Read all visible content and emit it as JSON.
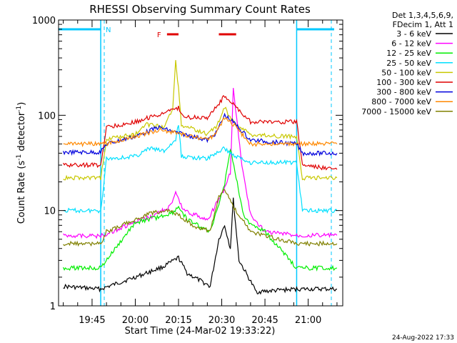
{
  "chart_data": {
    "type": "line",
    "title": "RHESSI Observing Summary Count Rates",
    "xlabel": "Start Time (24-Mar-02 19:33:22)",
    "ylabel": "Count Rate (s",
    "ylabel_sup": "-1",
    "ylabel_mid": " detector",
    "ylabel_end": ")",
    "y_scale": "log",
    "ylim": [
      1,
      1000
    ],
    "xlim": [
      "19:33:22",
      "21:12:00"
    ],
    "x_ticks": [
      "19:45",
      "20:00",
      "20:15",
      "20:30",
      "20:45",
      "21:00"
    ],
    "y_ticks": [
      "1",
      "10",
      "100",
      "1000"
    ],
    "legend_position": "right",
    "legend_header": [
      "Det 1,3,4,5,6,9,",
      "FDecim 1, Att 1"
    ],
    "flags": [
      {
        "label": "N",
        "color": "#00c8ff",
        "kind": "night"
      },
      {
        "label": "F",
        "color": "#e00000",
        "kind": "flare"
      }
    ],
    "night_start": "19:48",
    "night_end": "20:56",
    "flare_bars": [
      [
        "20:11",
        "20:15"
      ],
      [
        "20:29",
        "20:35"
      ]
    ],
    "series": [
      {
        "name": "3 - 6 keV",
        "color": "#000000",
        "points": [
          [
            "19:35",
            1.6
          ],
          [
            "19:48",
            1.5
          ],
          [
            "20:02",
            2.1
          ],
          [
            "20:10",
            2.6
          ],
          [
            "20:15",
            3.2
          ],
          [
            "20:18",
            2.2
          ],
          [
            "20:26",
            1.6
          ],
          [
            "20:29",
            5
          ],
          [
            "20:31",
            7
          ],
          [
            "20:33",
            4
          ],
          [
            "20:34",
            13
          ],
          [
            "20:36",
            3
          ],
          [
            "20:42",
            1.4
          ],
          [
            "20:56",
            1.5
          ],
          [
            "21:10",
            1.5
          ]
        ]
      },
      {
        "name": "6 - 12 keV",
        "color": "#ff00ff",
        "points": [
          [
            "19:35",
            5.5
          ],
          [
            "19:48",
            5.4
          ],
          [
            "20:00",
            7.5
          ],
          [
            "20:05",
            8.5
          ],
          [
            "20:12",
            11
          ],
          [
            "20:14",
            15
          ],
          [
            "20:17",
            10
          ],
          [
            "20:25",
            8
          ],
          [
            "20:29",
            13
          ],
          [
            "20:31",
            17
          ],
          [
            "20:33",
            25
          ],
          [
            "20:34",
            190
          ],
          [
            "20:37",
            30
          ],
          [
            "20:40",
            9
          ],
          [
            "20:45",
            6
          ],
          [
            "20:56",
            5.5
          ],
          [
            "21:10",
            5.5
          ]
        ]
      },
      {
        "name": "12 - 25 keV",
        "color": "#00ee00",
        "points": [
          [
            "19:35",
            2.5
          ],
          [
            "19:48",
            2.5
          ],
          [
            "20:00",
            7.5
          ],
          [
            "20:08",
            8.5
          ],
          [
            "20:13",
            9.5
          ],
          [
            "20:15",
            11
          ],
          [
            "20:18",
            8
          ],
          [
            "20:26",
            6
          ],
          [
            "20:29",
            12
          ],
          [
            "20:31",
            19
          ],
          [
            "20:33",
            45
          ],
          [
            "20:35",
            22
          ],
          [
            "20:38",
            8
          ],
          [
            "20:45",
            6
          ],
          [
            "20:56",
            2.5
          ],
          [
            "21:10",
            2.5
          ]
        ]
      },
      {
        "name": "25 - 50 keV",
        "color": "#00e0ff",
        "points": [
          [
            "19:35",
            10
          ],
          [
            "19:48",
            10
          ],
          [
            "19:50",
            35
          ],
          [
            "20:00",
            37
          ],
          [
            "20:05",
            45
          ],
          [
            "20:10",
            42
          ],
          [
            "20:14",
            55
          ],
          [
            "20:15",
            80
          ],
          [
            "20:16",
            37
          ],
          [
            "20:25",
            35
          ],
          [
            "20:28",
            40
          ],
          [
            "20:31",
            45
          ],
          [
            "20:34",
            38
          ],
          [
            "20:40",
            32
          ],
          [
            "20:56",
            32
          ],
          [
            "20:58",
            10
          ],
          [
            "21:10",
            10
          ]
        ]
      },
      {
        "name": "50 - 100 keV",
        "color": "#c8c800",
        "points": [
          [
            "19:35",
            22
          ],
          [
            "19:48",
            22
          ],
          [
            "19:50",
            57
          ],
          [
            "20:00",
            63
          ],
          [
            "20:04",
            80
          ],
          [
            "20:10",
            75
          ],
          [
            "20:13",
            120
          ],
          [
            "20:14",
            370
          ],
          [
            "20:15",
            190
          ],
          [
            "20:16",
            80
          ],
          [
            "20:25",
            63
          ],
          [
            "20:28",
            75
          ],
          [
            "20:31",
            120
          ],
          [
            "20:34",
            85
          ],
          [
            "20:40",
            62
          ],
          [
            "20:56",
            60
          ],
          [
            "20:58",
            22
          ],
          [
            "21:10",
            22
          ]
        ]
      },
      {
        "name": "100 - 300 keV",
        "color": "#e00000",
        "points": [
          [
            "19:35",
            30
          ],
          [
            "19:48",
            30
          ],
          [
            "19:50",
            75
          ],
          [
            "20:00",
            85
          ],
          [
            "20:07",
            100
          ],
          [
            "20:12",
            110
          ],
          [
            "20:15",
            120
          ],
          [
            "20:17",
            95
          ],
          [
            "20:25",
            95
          ],
          [
            "20:28",
            120
          ],
          [
            "20:31",
            160
          ],
          [
            "20:34",
            130
          ],
          [
            "20:40",
            85
          ],
          [
            "20:56",
            85
          ],
          [
            "20:58",
            30
          ],
          [
            "21:10",
            27
          ]
        ]
      },
      {
        "name": "300 - 800 keV",
        "color": "#0000dd",
        "points": [
          [
            "19:35",
            41
          ],
          [
            "19:48",
            41
          ],
          [
            "19:50",
            50
          ],
          [
            "20:00",
            60
          ],
          [
            "20:08",
            75
          ],
          [
            "20:15",
            65
          ],
          [
            "20:25",
            55
          ],
          [
            "20:28",
            65
          ],
          [
            "20:31",
            100
          ],
          [
            "20:34",
            85
          ],
          [
            "20:40",
            55
          ],
          [
            "20:56",
            50
          ],
          [
            "20:58",
            40
          ],
          [
            "21:10",
            40
          ]
        ]
      },
      {
        "name": "800 - 7000 keV",
        "color": "#ff8800",
        "points": [
          [
            "19:35",
            50
          ],
          [
            "19:48",
            50
          ],
          [
            "19:50",
            50
          ],
          [
            "20:00",
            60
          ],
          [
            "20:08",
            70
          ],
          [
            "20:15",
            65
          ],
          [
            "20:25",
            55
          ],
          [
            "20:28",
            65
          ],
          [
            "20:31",
            95
          ],
          [
            "20:34",
            80
          ],
          [
            "20:40",
            50
          ],
          [
            "20:56",
            50
          ],
          [
            "20:58",
            50
          ],
          [
            "21:10",
            50
          ]
        ]
      },
      {
        "name": "7000 - 15000 keV",
        "color": "#808000",
        "points": [
          [
            "19:35",
            4.5
          ],
          [
            "19:48",
            4.5
          ],
          [
            "19:50",
            6
          ],
          [
            "20:00",
            8
          ],
          [
            "20:06",
            9.5
          ],
          [
            "20:12",
            10
          ],
          [
            "20:15",
            9
          ],
          [
            "20:20",
            7
          ],
          [
            "20:26",
            6
          ],
          [
            "20:29",
            14
          ],
          [
            "20:31",
            17
          ],
          [
            "20:34",
            11
          ],
          [
            "20:40",
            6
          ],
          [
            "20:56",
            4.5
          ],
          [
            "21:10",
            4.5
          ]
        ]
      }
    ]
  },
  "footer_date": "24-Aug-2022 17:33"
}
